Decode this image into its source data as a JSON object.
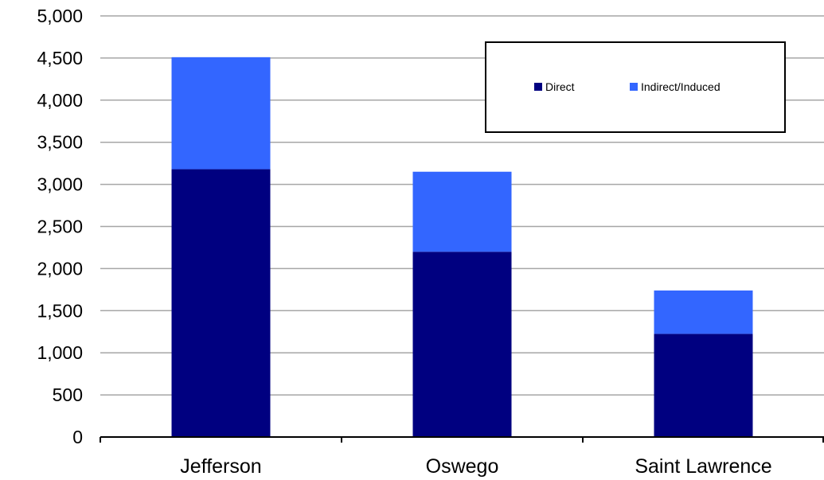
{
  "chart_data": {
    "type": "bar",
    "stacked": true,
    "categories": [
      "Jefferson",
      "Oswego",
      "Saint Lawrence"
    ],
    "series": [
      {
        "name": "Direct",
        "color": "#000080",
        "values": [
          3180,
          2200,
          1225
        ]
      },
      {
        "name": "Indirect/Induced",
        "color": "#3366FF",
        "values": [
          1330,
          950,
          515
        ]
      }
    ],
    "ylim": [
      0,
      5000
    ],
    "yticks": [
      0,
      500,
      1000,
      1500,
      2000,
      2500,
      3000,
      3500,
      4000,
      4500,
      5000
    ],
    "ytick_labels": [
      "0",
      "500",
      "1,000",
      "1,500",
      "2,000",
      "2,500",
      "3,000",
      "3,500",
      "4,000",
      "4,500",
      "5,000"
    ],
    "grid": true,
    "legend_position": "top-right",
    "title": "",
    "xlabel": "",
    "ylabel": ""
  }
}
